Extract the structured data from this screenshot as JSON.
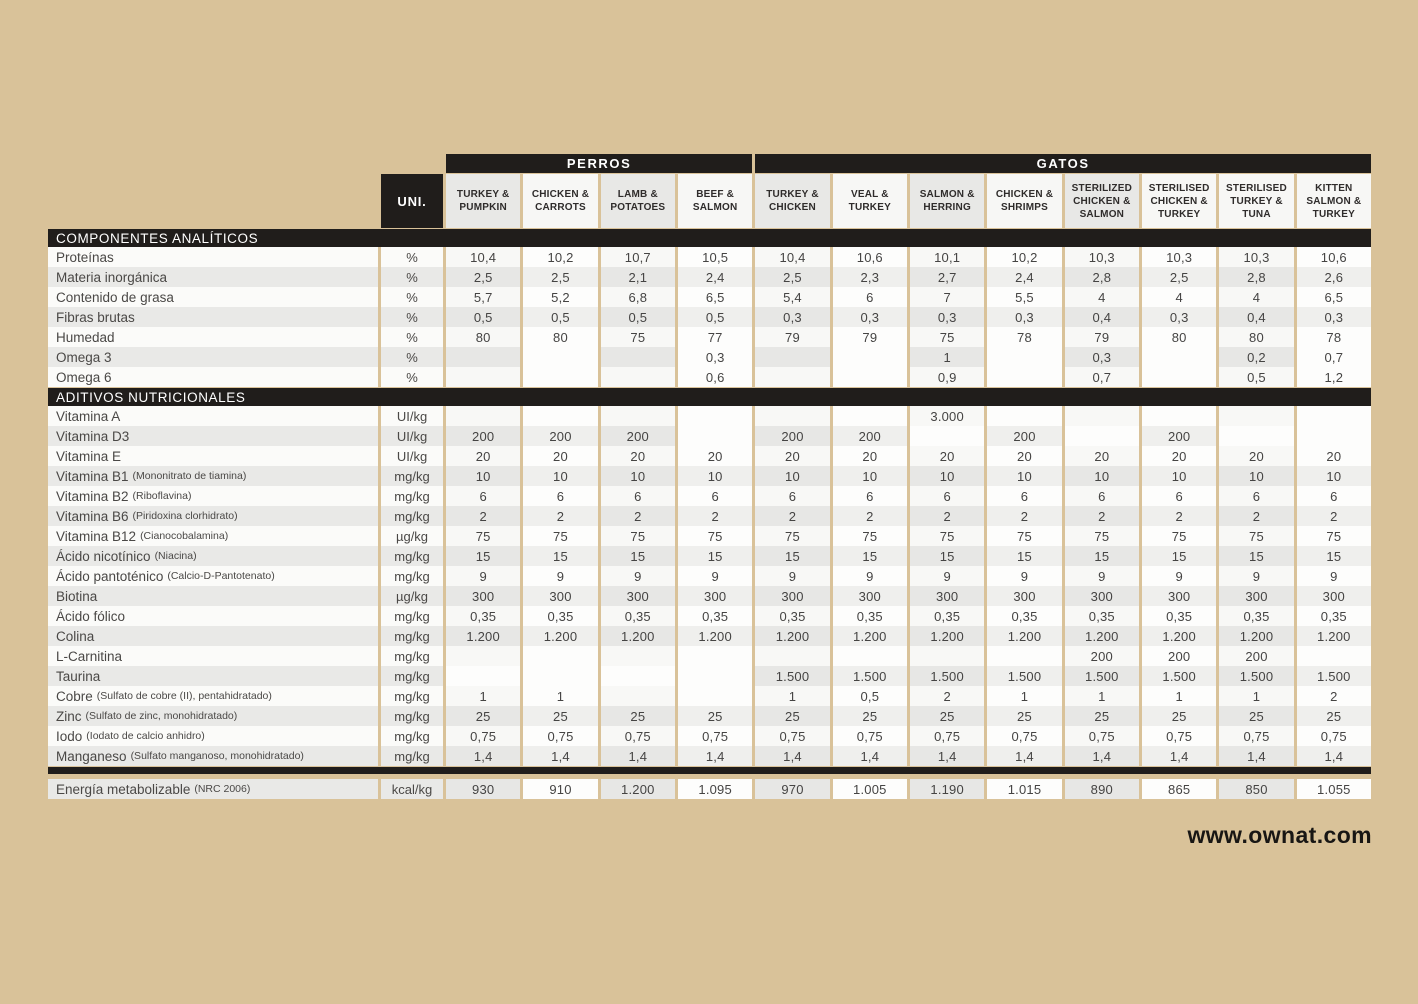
{
  "page": {
    "website": "www.ownat.com"
  },
  "colors": {
    "background": "#d9c299",
    "bar_black": "#201d1b",
    "cell_gray": "#e7e7e5",
    "cell_white": "#fdfdfc",
    "text_dark": "#454443"
  },
  "table": {
    "unit_header": "UNI.",
    "groups": [
      {
        "label": "PERROS",
        "span": 4
      },
      {
        "label": "GATOS",
        "span": 8
      }
    ],
    "columns": [
      "TURKEY & PUMPKIN",
      "CHICKEN & CARROTS",
      "LAMB & POTATOES",
      "BEEF & SALMON",
      "TURKEY & CHICKEN",
      "VEAL & TURKEY",
      "SALMON & HERRING",
      "CHICKEN & SHRIMPS",
      "STERILIZED CHICKEN & SALMON",
      "STERILISED CHICKEN & TURKEY",
      "STERILISED TURKEY & TUNA",
      "KITTEN SALMON & TURKEY"
    ],
    "sections": [
      {
        "title": "COMPONENTES ANALÍTICOS",
        "rows": [
          {
            "label": "Proteínas",
            "note": "",
            "unit": "%",
            "values": [
              "10,4",
              "10,2",
              "10,7",
              "10,5",
              "10,4",
              "10,6",
              "10,1",
              "10,2",
              "10,3",
              "10,3",
              "10,3",
              "10,6"
            ]
          },
          {
            "label": "Materia inorgánica",
            "note": "",
            "unit": "%",
            "values": [
              "2,5",
              "2,5",
              "2,1",
              "2,4",
              "2,5",
              "2,3",
              "2,7",
              "2,4",
              "2,8",
              "2,5",
              "2,8",
              "2,6"
            ]
          },
          {
            "label": "Contenido de grasa",
            "note": "",
            "unit": "%",
            "values": [
              "5,7",
              "5,2",
              "6,8",
              "6,5",
              "5,4",
              "6",
              "7",
              "5,5",
              "4",
              "4",
              "4",
              "6,5"
            ]
          },
          {
            "label": "Fibras brutas",
            "note": "",
            "unit": "%",
            "values": [
              "0,5",
              "0,5",
              "0,5",
              "0,5",
              "0,3",
              "0,3",
              "0,3",
              "0,3",
              "0,4",
              "0,3",
              "0,4",
              "0,3"
            ]
          },
          {
            "label": "Humedad",
            "note": "",
            "unit": "%",
            "values": [
              "80",
              "80",
              "75",
              "77",
              "79",
              "79",
              "75",
              "78",
              "79",
              "80",
              "80",
              "78"
            ]
          },
          {
            "label": "Omega 3",
            "note": "",
            "unit": "%",
            "checker": true,
            "values": [
              "",
              "",
              "",
              "0,3",
              "",
              "",
              "1",
              "",
              "0,3",
              "",
              "0,2",
              "0,7"
            ]
          },
          {
            "label": "Omega 6",
            "note": "",
            "unit": "%",
            "values": [
              "",
              "",
              "",
              "0,6",
              "",
              "",
              "0,9",
              "",
              "0,7",
              "",
              "0,5",
              "1,2"
            ]
          }
        ]
      },
      {
        "title": "ADITIVOS NUTRICIONALES",
        "rows": [
          {
            "label": "Vitamina A",
            "note": "",
            "unit": "UI/kg",
            "values": [
              "",
              "",
              "",
              "",
              "",
              "",
              "3.000",
              "",
              "",
              "",
              "",
              ""
            ]
          },
          {
            "label": "Vitamina D3",
            "note": "",
            "unit": "UI/kg",
            "values": [
              "200",
              "200",
              "200",
              "",
              "200",
              "200",
              "",
              "200",
              "",
              "200",
              "",
              ""
            ]
          },
          {
            "label": "Vitamina E",
            "note": "",
            "unit": "UI/kg",
            "values": [
              "20",
              "20",
              "20",
              "20",
              "20",
              "20",
              "20",
              "20",
              "20",
              "20",
              "20",
              "20"
            ]
          },
          {
            "label": "Vitamina B1",
            "note": "(Mononitrato de tiamina)",
            "unit": "mg/kg",
            "values": [
              "10",
              "10",
              "10",
              "10",
              "10",
              "10",
              "10",
              "10",
              "10",
              "10",
              "10",
              "10"
            ]
          },
          {
            "label": "Vitamina B2",
            "note": "(Riboflavina)",
            "unit": "mg/kg",
            "values": [
              "6",
              "6",
              "6",
              "6",
              "6",
              "6",
              "6",
              "6",
              "6",
              "6",
              "6",
              "6"
            ]
          },
          {
            "label": "Vitamina B6",
            "note": "(Piridoxina clorhidrato)",
            "unit": "mg/kg",
            "values": [
              "2",
              "2",
              "2",
              "2",
              "2",
              "2",
              "2",
              "2",
              "2",
              "2",
              "2",
              "2"
            ]
          },
          {
            "label": "Vitamina B12",
            "note": "(Cianocobalamina)",
            "unit": "µg/kg",
            "values": [
              "75",
              "75",
              "75",
              "75",
              "75",
              "75",
              "75",
              "75",
              "75",
              "75",
              "75",
              "75"
            ]
          },
          {
            "label": "Ácido nicotínico",
            "note": "(Niacina)",
            "unit": "mg/kg",
            "values": [
              "15",
              "15",
              "15",
              "15",
              "15",
              "15",
              "15",
              "15",
              "15",
              "15",
              "15",
              "15"
            ]
          },
          {
            "label": "Ácido pantoténico",
            "note": "(Calcio-D-Pantotenato)",
            "unit": "mg/kg",
            "values": [
              "9",
              "9",
              "9",
              "9",
              "9",
              "9",
              "9",
              "9",
              "9",
              "9",
              "9",
              "9"
            ]
          },
          {
            "label": "Biotina",
            "note": "",
            "unit": "µg/kg",
            "values": [
              "300",
              "300",
              "300",
              "300",
              "300",
              "300",
              "300",
              "300",
              "300",
              "300",
              "300",
              "300"
            ]
          },
          {
            "label": "Ácido fólico",
            "note": "",
            "unit": "mg/kg",
            "values": [
              "0,35",
              "0,35",
              "0,35",
              "0,35",
              "0,35",
              "0,35",
              "0,35",
              "0,35",
              "0,35",
              "0,35",
              "0,35",
              "0,35"
            ]
          },
          {
            "label": "Colina",
            "note": "",
            "unit": "mg/kg",
            "values": [
              "1.200",
              "1.200",
              "1.200",
              "1.200",
              "1.200",
              "1.200",
              "1.200",
              "1.200",
              "1.200",
              "1.200",
              "1.200",
              "1.200"
            ]
          },
          {
            "label": "L-Carnitina",
            "note": "",
            "unit": "mg/kg",
            "values": [
              "",
              "",
              "",
              "",
              "",
              "",
              "",
              "",
              "200",
              "200",
              "200",
              ""
            ]
          },
          {
            "label": "Taurina",
            "note": "",
            "unit": "mg/kg",
            "values": [
              "",
              "",
              "",
              "",
              "1.500",
              "1.500",
              "1.500",
              "1.500",
              "1.500",
              "1.500",
              "1.500",
              "1.500"
            ]
          },
          {
            "label": "Cobre",
            "note": "(Sulfato de cobre (II), pentahidratado)",
            "unit": "mg/kg",
            "values": [
              "1",
              "1",
              "",
              "",
              "1",
              "0,5",
              "2",
              "1",
              "1",
              "1",
              "1",
              "2"
            ]
          },
          {
            "label": "Zinc",
            "note": "(Sulfato de zinc, monohidratado)",
            "unit": "mg/kg",
            "values": [
              "25",
              "25",
              "25",
              "25",
              "25",
              "25",
              "25",
              "25",
              "25",
              "25",
              "25",
              "25"
            ]
          },
          {
            "label": "Iodo",
            "note": "(Iodato de calcio anhidro)",
            "unit": "mg/kg",
            "values": [
              "0,75",
              "0,75",
              "0,75",
              "0,75",
              "0,75",
              "0,75",
              "0,75",
              "0,75",
              "0,75",
              "0,75",
              "0,75",
              "0,75"
            ]
          },
          {
            "label": "Manganeso",
            "note": "(Sulfato manganoso, monohidratado)",
            "unit": "mg/kg",
            "values": [
              "1,4",
              "1,4",
              "1,4",
              "1,4",
              "1,4",
              "1,4",
              "1,4",
              "1,4",
              "1,4",
              "1,4",
              "1,4",
              "1,4"
            ]
          }
        ]
      }
    ],
    "footer_row": {
      "label": "Energía metabolizable",
      "note": "(NRC 2006)",
      "unit": "kcal/kg",
      "checker": true,
      "values": [
        "930",
        "910",
        "1.200",
        "1.095",
        "970",
        "1.005",
        "1.190",
        "1.015",
        "890",
        "865",
        "850",
        "1.055"
      ]
    }
  }
}
